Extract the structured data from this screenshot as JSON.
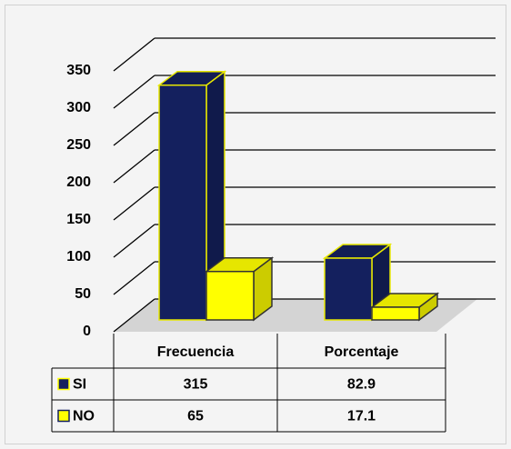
{
  "chart_data": {
    "type": "bar3d",
    "categories": [
      "Frecuencia",
      "Porcentaje"
    ],
    "series": [
      {
        "name": "SI",
        "color": "#14205e",
        "values": [
          315,
          82.9
        ]
      },
      {
        "name": "NO",
        "color": "#ffff00",
        "values": [
          65,
          17.1
        ]
      }
    ],
    "ylim": [
      0,
      350
    ],
    "yticks": [
      0,
      50,
      100,
      150,
      200,
      250,
      300,
      350
    ],
    "grid": true,
    "data_table": true
  }
}
